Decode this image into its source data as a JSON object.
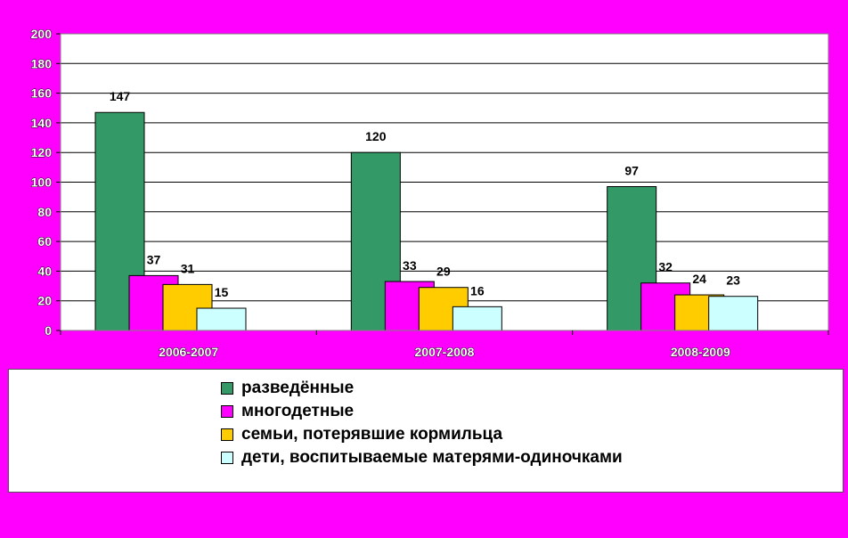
{
  "chart_data": {
    "type": "bar",
    "title": "",
    "xlabel": "",
    "ylabel": "",
    "categories": [
      "2006-2007",
      "2007-2008",
      "2008-2009"
    ],
    "ylim": [
      0,
      200
    ],
    "yticks": [
      0,
      20,
      40,
      60,
      80,
      100,
      120,
      140,
      160,
      180,
      200
    ],
    "grid": true,
    "legend_position": "bottom",
    "series": [
      {
        "name": "разведённые",
        "color": "#339966",
        "values": [
          147,
          120,
          97
        ]
      },
      {
        "name": "многодетные",
        "color": "#ff00ff",
        "values": [
          37,
          33,
          32
        ]
      },
      {
        "name": "семьи, потерявшие кормильца",
        "color": "#ffcc00",
        "values": [
          31,
          29,
          24
        ]
      },
      {
        "name": "дети, воспитываемые матерями-одиночками",
        "color": "#ccffff",
        "values": [
          15,
          16,
          23
        ]
      }
    ]
  },
  "colors": {
    "background": "#ff00ff",
    "plot_area": "#ffffff",
    "gridline": "#000000"
  }
}
